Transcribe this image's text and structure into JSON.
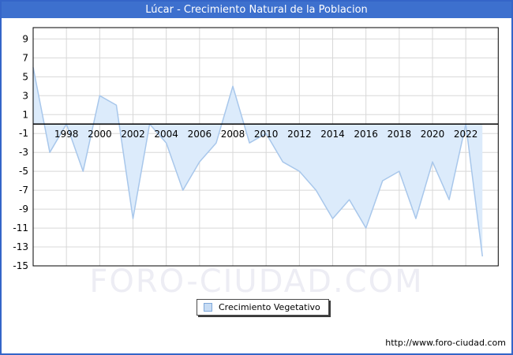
{
  "window": {
    "title": "Lúcar - Crecimiento Natural de la Poblacion"
  },
  "chart_data": {
    "type": "area",
    "title": "Lúcar - Crecimiento Natural de la Poblacion",
    "x": [
      1996,
      1997,
      1998,
      1999,
      2000,
      2001,
      2002,
      2003,
      2004,
      2005,
      2006,
      2007,
      2008,
      2009,
      2010,
      2011,
      2012,
      2013,
      2014,
      2015,
      2016,
      2017,
      2018,
      2019,
      2020,
      2021,
      2022,
      2023
    ],
    "series": [
      {
        "name": "Crecimiento Vegetativo",
        "values": [
          6,
          -3,
          0,
          -5,
          3,
          2,
          -10,
          0,
          -2,
          -7,
          -4,
          -2,
          4,
          -2,
          -1,
          -4,
          -5,
          -7,
          -10,
          -8,
          -11,
          -6,
          -5,
          -10,
          -4,
          -8,
          0,
          -14
        ]
      }
    ],
    "baseline": 0,
    "xlim": [
      1996,
      2023.95
    ],
    "ylim": [
      -15,
      10.2
    ],
    "xticks": [
      1998,
      2000,
      2002,
      2004,
      2006,
      2008,
      2010,
      2012,
      2014,
      2016,
      2018,
      2020,
      2022
    ],
    "yticks": [
      9,
      7,
      5,
      3,
      1,
      -1,
      -3,
      -5,
      -7,
      -9,
      -11,
      -13,
      -15
    ],
    "grid": true,
    "legend_position": "bottom-center"
  },
  "legend": {
    "label": "Crecimiento Vegetativo"
  },
  "watermark": {
    "text": "FORO-CIUDAD.COM"
  },
  "footer": {
    "url": "http://www.foro-ciudad.com"
  },
  "colors": {
    "titlebar_bg": "#3d70ce",
    "titlebar_text": "#ffffff",
    "page_border": "#3465c8",
    "line": "#a8c7eb",
    "fill": "#dcebfb",
    "grid": "#d8d8d8",
    "axis": "#000000",
    "watermark": "#ededf4",
    "legend_swatch_fill": "#c7dcf4",
    "legend_swatch_border": "#7fa8d9"
  }
}
